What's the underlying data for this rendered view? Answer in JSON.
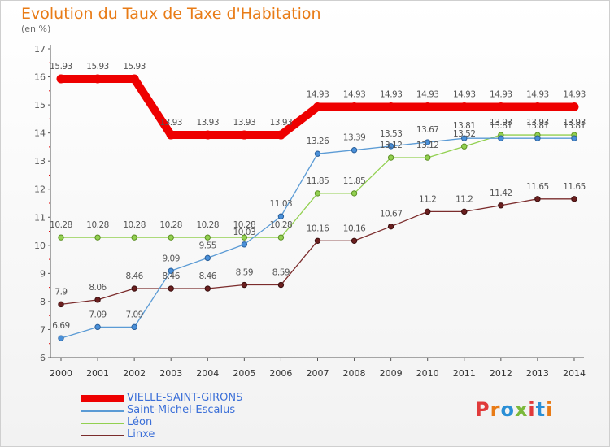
{
  "title": "Evolution du Taux de Taxe d'Habitation",
  "unit": "(en %)",
  "logo": "Proxiti",
  "chart_data": {
    "type": "line",
    "title": "Evolution du Taux de Taxe d'Habitation",
    "ylabel": "(en %)",
    "ylim": [
      6,
      17
    ],
    "yticks": [
      6,
      7,
      8,
      9,
      10,
      11,
      12,
      13,
      14,
      15,
      16,
      17
    ],
    "x": [
      2000,
      2001,
      2002,
      2003,
      2004,
      2005,
      2006,
      2007,
      2008,
      2009,
      2010,
      2011,
      2012,
      2013,
      2014
    ],
    "grid": false,
    "legend": "bottom-left",
    "series": [
      {
        "name": "VIELLE-SAINT-GIRONS",
        "color": "#ee0000",
        "values": [
          15.93,
          15.93,
          15.93,
          13.93,
          13.93,
          13.93,
          13.93,
          14.93,
          14.93,
          14.93,
          14.93,
          14.93,
          14.93,
          14.93,
          14.93
        ]
      },
      {
        "name": "Saint-Michel-Escalus",
        "color": "#5b9bd5",
        "values": [
          6.69,
          7.09,
          7.09,
          9.09,
          9.55,
          10.03,
          11.03,
          13.26,
          13.39,
          13.53,
          13.67,
          13.81,
          13.81,
          13.81,
          13.81
        ]
      },
      {
        "name": "Léon",
        "color": "#92d050",
        "values": [
          10.28,
          10.28,
          10.28,
          10.28,
          10.28,
          10.28,
          10.28,
          11.85,
          11.85,
          13.12,
          13.12,
          13.52,
          13.93,
          13.93,
          13.93
        ]
      },
      {
        "name": "Linxe",
        "color": "#7b2c2c",
        "values": [
          7.9,
          8.06,
          8.46,
          8.46,
          8.46,
          8.59,
          8.59,
          10.16,
          10.16,
          10.67,
          11.2,
          11.2,
          11.42,
          11.65,
          11.65
        ]
      }
    ]
  }
}
